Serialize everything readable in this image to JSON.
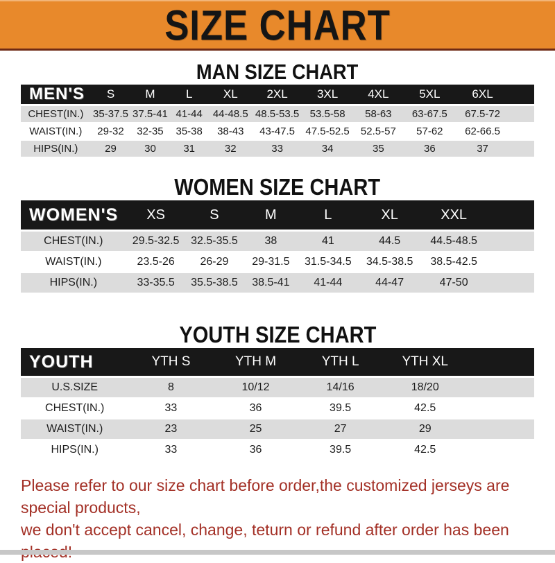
{
  "banner": {
    "title": "SIZE CHART"
  },
  "colors": {
    "banner_orange": "#E8892B",
    "banner_underline": "#6E2A14",
    "header_black": "#181818",
    "row_gray": "#DCDCDC",
    "row_white": "#FFFFFF",
    "note_red": "#A33026",
    "bottom_strip_gray": "#C7C7C7"
  },
  "sections": [
    {
      "title": "MAN SIZE CHART",
      "corner_label": "MEN'S",
      "columns": [
        "S",
        "M",
        "L",
        "XL",
        "2XL",
        "3XL",
        "4XL",
        "5XL",
        "6XL"
      ],
      "rows": [
        {
          "label": "CHEST(IN.)",
          "values": [
            "35-37.5",
            "37.5-41",
            "41-44",
            "44-48.5",
            "48.5-53.5",
            "53.5-58",
            "58-63",
            "63-67.5",
            "67.5-72"
          ]
        },
        {
          "label": "WAIST(IN.)",
          "values": [
            "29-32",
            "32-35",
            "35-38",
            "38-43",
            "43-47.5",
            "47.5-52.5",
            "52.5-57",
            "57-62",
            "62-66.5"
          ]
        },
        {
          "label": "HIPS(IN.)",
          "values": [
            "29",
            "30",
            "31",
            "32",
            "33",
            "34",
            "35",
            "36",
            "37"
          ]
        }
      ]
    },
    {
      "title": "WOMEN SIZE CHART",
      "corner_label": "WOMEN'S",
      "columns": [
        "XS",
        "S",
        "M",
        "L",
        "XL",
        "XXL"
      ],
      "rows": [
        {
          "label": "CHEST(IN.)",
          "values": [
            "29.5-32.5",
            "32.5-35.5",
            "38",
            "41",
            "44.5",
            "44.5-48.5"
          ]
        },
        {
          "label": "WAIST(IN.)",
          "values": [
            "23.5-26",
            "26-29",
            "29-31.5",
            "31.5-34.5",
            "34.5-38.5",
            "38.5-42.5"
          ]
        },
        {
          "label": "HIPS(IN.)",
          "values": [
            "33-35.5",
            "35.5-38.5",
            "38.5-41",
            "41-44",
            "44-47",
            "47-50"
          ]
        }
      ]
    },
    {
      "title": "YOUTH SIZE CHART",
      "corner_label": "YOUTH",
      "columns": [
        "YTH S",
        "YTH M",
        "YTH L",
        "YTH XL"
      ],
      "rows": [
        {
          "label": "U.S.SIZE",
          "values": [
            "8",
            "10/12",
            "14/16",
            "18/20"
          ]
        },
        {
          "label": "CHEST(IN.)",
          "values": [
            "33",
            "36",
            "39.5",
            "42.5"
          ]
        },
        {
          "label": "WAIST(IN.)",
          "values": [
            "23",
            "25",
            "27",
            "29"
          ]
        },
        {
          "label": "HIPS(IN.)",
          "values": [
            "33",
            "36",
            "39.5",
            "42.5"
          ]
        }
      ]
    }
  ],
  "note": {
    "line1": "Please refer to our size chart before order,the customized jerseys are special products,",
    "line2": "we don't accept cancel, change, teturn or refund after order has been placed!"
  }
}
